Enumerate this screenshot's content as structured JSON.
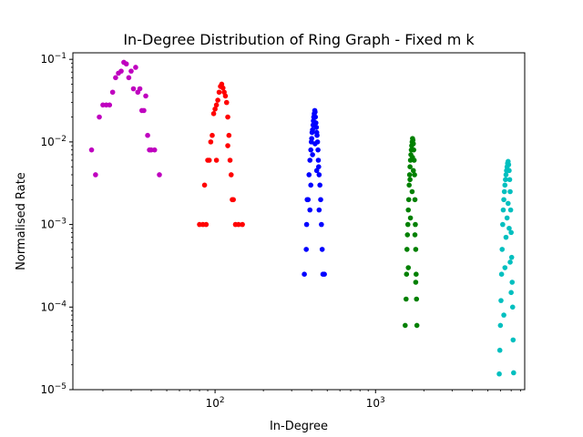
{
  "chart_data": {
    "type": "scatter",
    "title": "In-Degree Distribution of Ring Graph - Fixed m k",
    "xlabel": "In-Degree",
    "ylabel": "Normalised Rate",
    "xscale": "log",
    "yscale": "log",
    "xlim": [
      13,
      8500
    ],
    "ylim": [
      1e-05,
      0.12
    ],
    "grid": false,
    "legend": "none",
    "x_ticks": [
      {
        "value": 100,
        "base": "10",
        "exp": "2"
      },
      {
        "value": 1000,
        "base": "10",
        "exp": "3"
      }
    ],
    "y_ticks": [
      {
        "value": 1e-05,
        "base": "10",
        "exp": "−5"
      },
      {
        "value": 0.0001,
        "base": "10",
        "exp": "−4"
      },
      {
        "value": 0.001,
        "base": "10",
        "exp": "−3"
      },
      {
        "value": 0.01,
        "base": "10",
        "exp": "−2"
      },
      {
        "value": 0.1,
        "base": "10",
        "exp": "−1"
      }
    ],
    "series": [
      {
        "color": "#bf00bf",
        "points": [
          [
            17,
            0.008
          ],
          [
            18,
            0.004
          ],
          [
            19,
            0.02
          ],
          [
            20,
            0.028
          ],
          [
            21,
            0.028
          ],
          [
            22,
            0.028
          ],
          [
            23,
            0.04
          ],
          [
            24,
            0.06
          ],
          [
            25,
            0.068
          ],
          [
            26,
            0.072
          ],
          [
            27,
            0.092
          ],
          [
            28,
            0.088
          ],
          [
            29,
            0.06
          ],
          [
            30,
            0.072
          ],
          [
            31,
            0.044
          ],
          [
            32,
            0.08
          ],
          [
            33,
            0.04
          ],
          [
            34,
            0.044
          ],
          [
            35,
            0.024
          ],
          [
            36,
            0.024
          ],
          [
            37,
            0.036
          ],
          [
            38,
            0.012
          ],
          [
            39,
            0.008
          ],
          [
            40,
            0.008
          ],
          [
            42,
            0.008
          ],
          [
            45,
            0.004
          ]
        ]
      },
      {
        "color": "#ff0000",
        "points": [
          [
            80,
            0.001
          ],
          [
            84,
            0.001
          ],
          [
            86,
            0.003
          ],
          [
            88,
            0.001
          ],
          [
            90,
            0.006
          ],
          [
            92,
            0.006
          ],
          [
            94,
            0.01
          ],
          [
            96,
            0.012
          ],
          [
            98,
            0.022
          ],
          [
            100,
            0.025
          ],
          [
            102,
            0.028
          ],
          [
            104,
            0.032
          ],
          [
            106,
            0.04
          ],
          [
            108,
            0.047
          ],
          [
            110,
            0.05
          ],
          [
            112,
            0.045
          ],
          [
            114,
            0.04
          ],
          [
            116,
            0.036
          ],
          [
            118,
            0.03
          ],
          [
            120,
            0.02
          ],
          [
            122,
            0.012
          ],
          [
            124,
            0.006
          ],
          [
            126,
            0.004
          ],
          [
            128,
            0.002
          ],
          [
            130,
            0.002
          ],
          [
            134,
            0.001
          ],
          [
            140,
            0.001
          ],
          [
            148,
            0.001
          ],
          [
            102,
            0.006
          ],
          [
            120,
            0.009
          ]
        ]
      },
      {
        "color": "#0000ff",
        "points": [
          [
            360,
            0.00025
          ],
          [
            370,
            0.0005
          ],
          [
            372,
            0.001
          ],
          [
            375,
            0.002
          ],
          [
            380,
            0.002
          ],
          [
            385,
            0.004
          ],
          [
            390,
            0.006
          ],
          [
            395,
            0.008
          ],
          [
            398,
            0.01
          ],
          [
            400,
            0.011
          ],
          [
            402,
            0.013
          ],
          [
            405,
            0.014
          ],
          [
            408,
            0.016
          ],
          [
            410,
            0.018
          ],
          [
            412,
            0.02
          ],
          [
            415,
            0.022
          ],
          [
            418,
            0.024
          ],
          [
            420,
            0.023
          ],
          [
            422,
            0.02
          ],
          [
            425,
            0.017
          ],
          [
            428,
            0.015
          ],
          [
            430,
            0.013
          ],
          [
            432,
            0.012
          ],
          [
            435,
            0.01
          ],
          [
            438,
            0.008
          ],
          [
            440,
            0.006
          ],
          [
            442,
            0.005
          ],
          [
            445,
            0.004
          ],
          [
            450,
            0.003
          ],
          [
            455,
            0.002
          ],
          [
            460,
            0.001
          ],
          [
            465,
            0.0005
          ],
          [
            470,
            0.00025
          ],
          [
            480,
            0.00025
          ],
          [
            390,
            0.0015
          ],
          [
            395,
            0.003
          ],
          [
            405,
            0.007
          ],
          [
            420,
            0.0095
          ],
          [
            430,
            0.0045
          ],
          [
            445,
            0.0015
          ]
        ]
      },
      {
        "color": "#008000",
        "points": [
          [
            1530,
            6e-05
          ],
          [
            1550,
            0.000125
          ],
          [
            1560,
            0.00025
          ],
          [
            1570,
            0.0005
          ],
          [
            1580,
            0.00075
          ],
          [
            1590,
            0.001
          ],
          [
            1600,
            0.0015
          ],
          [
            1610,
            0.002
          ],
          [
            1620,
            0.003
          ],
          [
            1630,
            0.004
          ],
          [
            1640,
            0.005
          ],
          [
            1650,
            0.006
          ],
          [
            1660,
            0.007
          ],
          [
            1670,
            0.008
          ],
          [
            1680,
            0.009
          ],
          [
            1690,
            0.01
          ],
          [
            1700,
            0.011
          ],
          [
            1710,
            0.0105
          ],
          [
            1720,
            0.0095
          ],
          [
            1730,
            0.008
          ],
          [
            1740,
            0.006
          ],
          [
            1750,
            0.004
          ],
          [
            1760,
            0.002
          ],
          [
            1770,
            0.001
          ],
          [
            1780,
            0.0005
          ],
          [
            1790,
            0.00025
          ],
          [
            1800,
            0.000125
          ],
          [
            1810,
            6e-05
          ],
          [
            1600,
            0.0003
          ],
          [
            1650,
            0.0012
          ],
          [
            1690,
            0.0025
          ],
          [
            1720,
            0.0045
          ],
          [
            1760,
            0.00075
          ],
          [
            1780,
            0.0002
          ],
          [
            1640,
            0.0035
          ],
          [
            1700,
            0.0065
          ]
        ]
      },
      {
        "color": "#00bfbf",
        "points": [
          [
            5900,
            1.55e-05
          ],
          [
            5950,
            3e-05
          ],
          [
            6000,
            6e-05
          ],
          [
            6050,
            0.00012
          ],
          [
            6100,
            0.00025
          ],
          [
            6150,
            0.0005
          ],
          [
            6200,
            0.001
          ],
          [
            6250,
            0.0015
          ],
          [
            6300,
            0.002
          ],
          [
            6350,
            0.0025
          ],
          [
            6400,
            0.003
          ],
          [
            6450,
            0.0035
          ],
          [
            6500,
            0.004
          ],
          [
            6550,
            0.0045
          ],
          [
            6600,
            0.005
          ],
          [
            6650,
            0.0055
          ],
          [
            6700,
            0.0058
          ],
          [
            6750,
            0.0053
          ],
          [
            6800,
            0.0045
          ],
          [
            6850,
            0.0035
          ],
          [
            6900,
            0.0025
          ],
          [
            6950,
            0.0015
          ],
          [
            7000,
            0.0008
          ],
          [
            7050,
            0.0004
          ],
          [
            7100,
            0.0002
          ],
          [
            7150,
            0.0001
          ],
          [
            7200,
            4e-05
          ],
          [
            7250,
            1.6e-05
          ],
          [
            6300,
            8e-05
          ],
          [
            6400,
            0.0003
          ],
          [
            6500,
            0.0007
          ],
          [
            6600,
            0.0012
          ],
          [
            6700,
            0.0018
          ],
          [
            6800,
            0.0009
          ],
          [
            6900,
            0.00035
          ],
          [
            7000,
            0.00015
          ]
        ]
      }
    ]
  }
}
